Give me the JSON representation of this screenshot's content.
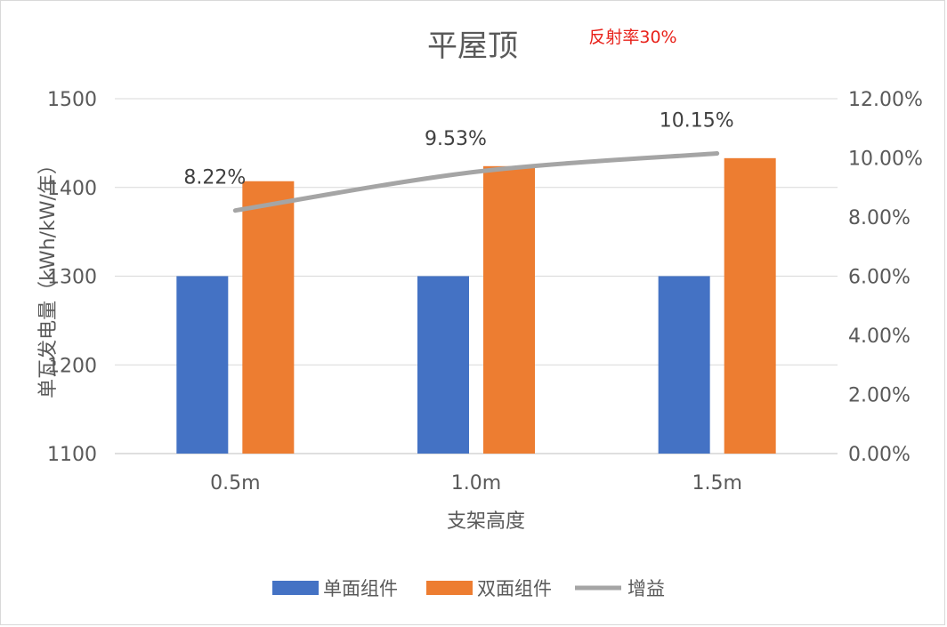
{
  "chart_data": {
    "type": "bar",
    "title": "平屋顶",
    "annotation": "反射率30%",
    "annotation_color": "#e8211a",
    "categories": [
      "0.5m",
      "1.0m",
      "1.5m"
    ],
    "xlabel": "支架高度",
    "ylabel": "单瓦发电量（kWh/kW/年）",
    "ylim": [
      1100,
      1500
    ],
    "yticks": [
      "1100",
      "1200",
      "1300",
      "1400",
      "1500"
    ],
    "y2lim": [
      0,
      0.12
    ],
    "y2ticks": [
      "0.00%",
      "2.00%",
      "4.00%",
      "6.00%",
      "8.00%",
      "10.00%",
      "12.00%"
    ],
    "grid": true,
    "legend_position": "bottom",
    "series": [
      {
        "name": "单面组件",
        "kind": "bar",
        "axis": "left",
        "color": "#4472c4",
        "values": [
          1300,
          1300,
          1300
        ]
      },
      {
        "name": "双面组件",
        "kind": "bar",
        "axis": "left",
        "color": "#ed7d31",
        "values": [
          1407,
          1424,
          1433
        ]
      },
      {
        "name": "增益",
        "kind": "line",
        "axis": "right",
        "color": "#a5a5a5",
        "values": [
          0.0822,
          0.0953,
          0.1015
        ],
        "labels": [
          "8.22%",
          "9.53%",
          "10.15%"
        ]
      }
    ]
  }
}
